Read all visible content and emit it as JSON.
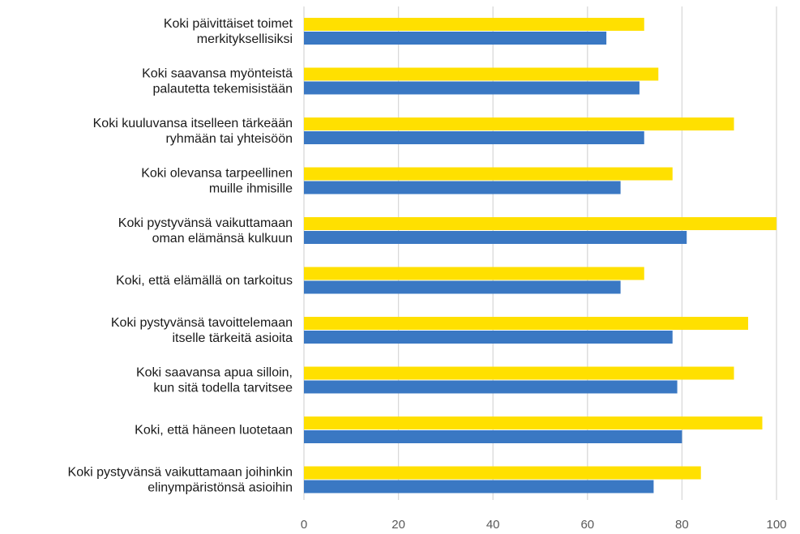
{
  "chart_data": {
    "type": "bar",
    "orientation": "horizontal",
    "categories": [
      [
        "Koki päivittäiset toimet",
        "merkityksellisiksi"
      ],
      [
        "Koki saavansa myönteistä",
        "palautetta tekemisistään"
      ],
      [
        "Koki kuuluvansa itselleen tärkeään",
        "ryhmään tai yhteisöön"
      ],
      [
        "Koki olevansa tarpeellinen",
        "muille ihmisille"
      ],
      [
        "Koki pystyvänsä vaikuttamaan",
        "oman elämänsä kulkuun"
      ],
      [
        "Koki, että elämällä on tarkoitus"
      ],
      [
        "Koki pystyvänsä tavoittelemaan",
        "itselle tärkeitä asioita"
      ],
      [
        "Koki saavansa apua silloin,",
        "kun sitä todella tarvitsee"
      ],
      [
        "Koki, että häneen luotetaan"
      ],
      [
        "Koki pystyvänsä vaikuttamaan joihinkin",
        "elinympäristönsä asioihin"
      ]
    ],
    "series": [
      {
        "color": "#FFE000",
        "values": [
          72,
          75,
          91,
          78,
          100,
          72,
          94,
          91,
          97,
          84
        ]
      },
      {
        "color": "#3A78C3",
        "values": [
          64,
          71,
          72,
          67,
          81,
          67,
          78,
          79,
          80,
          74
        ]
      }
    ],
    "xlim": [
      0,
      100
    ],
    "x_ticks": [
      "0",
      "20",
      "40",
      "60",
      "80",
      "100"
    ],
    "grid": "vertical",
    "legend": "none",
    "title": "",
    "xlabel": "",
    "ylabel": ""
  }
}
